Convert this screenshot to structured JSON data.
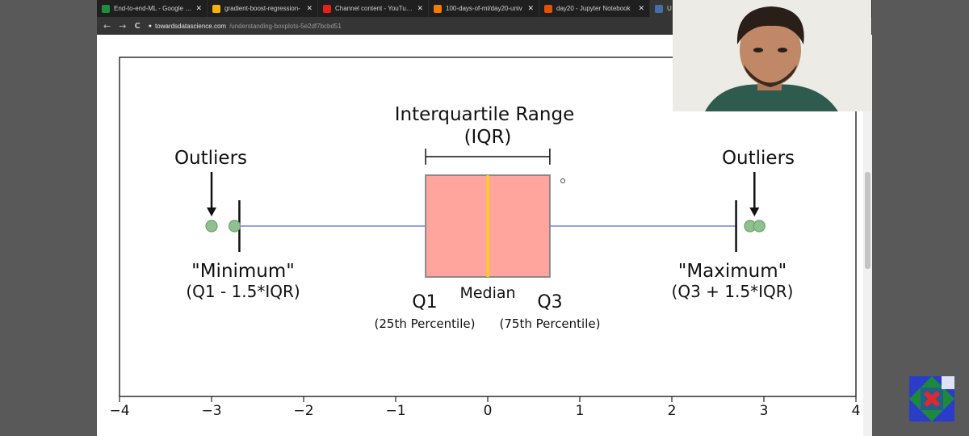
{
  "browser": {
    "tabs": [
      {
        "label": "End-to-end-ML - Google Sh",
        "favicon_color": "#1e8e3e",
        "active": false
      },
      {
        "label": "gradient-boost-regression-",
        "favicon_color": "#f4b400",
        "active": false
      },
      {
        "label": "Channel content - YouTube",
        "favicon_color": "#e62117",
        "active": false
      },
      {
        "label": "100-days-of-ml/day20-univ",
        "favicon_color": "#f57c00",
        "active": false
      },
      {
        "label": "day20 - Jupyter Notebook",
        "favicon_color": "#e65100",
        "active": false
      },
      {
        "label": "U",
        "favicon_color": "#4a6fa5",
        "active": true
      }
    ],
    "close_glyph": "✕",
    "nav": {
      "back": "←",
      "forward": "→",
      "reload": "C",
      "lock": "🔒"
    },
    "url_host": "towardsdatascience.com",
    "url_path": "/understanding-boxplots-5e2df7bcbd51"
  },
  "chart_data": {
    "type": "boxplot",
    "xlim": [
      -4,
      4
    ],
    "x_ticks": [
      "−4",
      "−3",
      "−2",
      "−1",
      "0",
      "1",
      "2",
      "3",
      "4"
    ],
    "box": {
      "q1": -0.6745,
      "median": 0,
      "q3": 0.6745,
      "whisker_low": -2.698,
      "whisker_high": 2.698
    },
    "outliers": [
      -3.0,
      -2.75,
      2.85,
      2.95
    ],
    "colors": {
      "box_fill": "#ffa59e",
      "box_edge": "#8a8a8a",
      "median": "#ffd700",
      "whisker": "#9a9fe8",
      "outlier": "#8fc08f",
      "outlier_edge": "#6f9f6f"
    },
    "annotations": {
      "iqr_title": "Interquartile Range",
      "iqr_sub": "(IQR)",
      "outliers_left": "Outliers",
      "outliers_right": "Outliers",
      "minimum": "\"Minimum\"",
      "minimum_formula": "(Q1 - 1.5*IQR)",
      "maximum": "\"Maximum\"",
      "maximum_formula": "(Q3 + 1.5*IQR)",
      "q1": "Q1",
      "q1_sub": "(25th Percentile)",
      "median": "Median",
      "q3": "Q3",
      "q3_sub": "(75th Percentile)"
    }
  },
  "webcam": {
    "presenter": "person-on-webcam"
  },
  "logo": {
    "name": "channel-logo"
  }
}
